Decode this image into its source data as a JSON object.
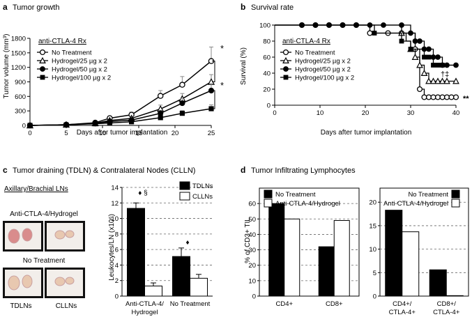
{
  "chart_data": [
    {
      "id": "a",
      "type": "line",
      "letter": "a",
      "title": "Tumor growth",
      "xlabel": "Days after tumor implantation",
      "ylabel": "Tumor volume (mm³)",
      "xlim": [
        0,
        25
      ],
      "ylim": [
        0,
        1800
      ],
      "xticks": [
        0,
        5,
        10,
        15,
        20,
        25
      ],
      "yticks": [
        0,
        300,
        600,
        900,
        1200,
        1500,
        1800
      ],
      "legend_title": "anti-CTLA-4 Rx",
      "series": [
        {
          "name": "No Treatment",
          "marker": "circle-open",
          "x": [
            0,
            5,
            9,
            11,
            14,
            18,
            21,
            25
          ],
          "y": [
            0,
            15,
            55,
            150,
            220,
            610,
            840,
            1330
          ],
          "err": [
            0,
            10,
            25,
            40,
            55,
            110,
            170,
            290
          ]
        },
        {
          "name": "Hydrogel/25 µg x 2",
          "marker": "triangle-open",
          "x": [
            0,
            5,
            9,
            11,
            14,
            18,
            21,
            25
          ],
          "y": [
            0,
            15,
            45,
            100,
            145,
            340,
            550,
            900
          ],
          "err": [
            0,
            10,
            20,
            30,
            40,
            80,
            110,
            150
          ]
        },
        {
          "name": "Hydrogel/50 µg x 2",
          "marker": "circle-filled",
          "x": [
            0,
            5,
            9,
            11,
            14,
            18,
            21,
            25
          ],
          "y": [
            0,
            15,
            40,
            80,
            110,
            250,
            460,
            720
          ],
          "err": [
            0,
            10,
            20,
            25,
            30,
            60,
            90,
            140
          ]
        },
        {
          "name": "Hydrogel/100 µg x 2",
          "marker": "square-filled",
          "x": [
            0,
            5,
            9,
            11,
            14,
            18,
            21,
            25
          ],
          "y": [
            0,
            10,
            35,
            50,
            75,
            160,
            250,
            345
          ],
          "err": [
            0,
            8,
            15,
            20,
            25,
            40,
            55,
            80
          ]
        }
      ],
      "annotations": [
        "*",
        "*"
      ]
    },
    {
      "id": "b",
      "type": "line",
      "letter": "b",
      "title": "Survival rate",
      "xlabel": "Days after tumor implantation",
      "ylabel": "Survival (%)",
      "xlim": [
        0,
        40
      ],
      "ylim": [
        0,
        100
      ],
      "xticks": [
        0,
        10,
        20,
        30,
        40
      ],
      "yticks": [
        0,
        20,
        40,
        60,
        80,
        100
      ],
      "legend_title": "anti-CTLA-4 Rx",
      "series": [
        {
          "name": "No Treatment",
          "marker": "circle-open",
          "steps": [
            [
              0,
              100
            ],
            [
              21,
              90
            ],
            [
              31,
              70
            ],
            [
              32,
              20
            ],
            [
              33,
              10
            ],
            [
              40,
              10
            ]
          ],
          "markers_x": [
            6,
            9,
            12,
            15,
            18,
            21,
            25,
            28,
            31,
            32,
            33,
            34,
            35,
            36,
            37,
            38,
            39,
            40
          ]
        },
        {
          "name": "Hydrogel/25 µg x 2",
          "marker": "triangle-open",
          "steps": [
            [
              0,
              100
            ],
            [
              28,
              90
            ],
            [
              29,
              80
            ],
            [
              30,
              70
            ],
            [
              31,
              60
            ],
            [
              32,
              50
            ],
            [
              33,
              40
            ],
            [
              34,
              30
            ],
            [
              40,
              30
            ]
          ],
          "markers_x": [
            28,
            30,
            31,
            32,
            33,
            34,
            35,
            36,
            37,
            38,
            40
          ]
        },
        {
          "name": "Hydrogel/50 µg x 2",
          "marker": "circle-filled",
          "steps": [
            [
              0,
              100
            ],
            [
              30,
              90
            ],
            [
              31,
              80
            ],
            [
              33,
              70
            ],
            [
              35,
              60
            ],
            [
              37,
              50
            ],
            [
              40,
              50
            ]
          ],
          "markers_x": [
            6,
            9,
            12,
            15,
            18,
            21,
            24,
            28,
            30,
            31,
            32,
            33,
            34,
            35,
            36,
            37,
            38,
            40
          ]
        },
        {
          "name": "Hydrogel/100 µg x 2",
          "marker": "square-filled",
          "steps": [
            [
              0,
              100
            ],
            [
              22,
              90
            ],
            [
              28,
              80
            ],
            [
              30,
              70
            ],
            [
              33,
              60
            ],
            [
              35,
              50
            ],
            [
              40,
              50
            ]
          ],
          "markers_x": [
            22,
            28,
            30,
            33,
            34,
            35,
            36,
            37
          ]
        }
      ],
      "annotations": [
        "†‡",
        "**"
      ]
    },
    {
      "id": "c",
      "type": "bar",
      "letter": "c",
      "title": "Tumor draining (TDLN) & Contralateral Nodes (CLLN)",
      "ylabel": "Leukocytes/LN (x10⁶)",
      "ylim": [
        0,
        14
      ],
      "yticks": [
        0,
        2,
        4,
        6,
        8,
        10,
        12,
        14
      ],
      "categories": [
        "Anti-CTLA-4/ Hydrogel",
        "No Treatment"
      ],
      "series": [
        {
          "name": "TDLNs",
          "fill": "#000000",
          "values": [
            11.3,
            5.1
          ],
          "err": [
            0.7,
            1.1
          ]
        },
        {
          "name": "CLLNs",
          "fill": "#ffffff",
          "values": [
            1.3,
            2.3
          ],
          "err": [
            0.4,
            0.5
          ]
        }
      ],
      "annotations": [
        "♦ §",
        "♦"
      ]
    },
    {
      "id": "d1",
      "type": "bar",
      "letter": "d",
      "title": "Tumor Infiltrating Lymphocytes",
      "ylabel": "% of CD3+ TIL",
      "ylim": [
        0,
        70
      ],
      "yticks": [
        0,
        10,
        20,
        30,
        40,
        50,
        60
      ],
      "categories": [
        "CD4+",
        "CD8+"
      ],
      "series": [
        {
          "name": "No Treatment",
          "fill": "#000000",
          "values": [
            60,
            32
          ]
        },
        {
          "name": "Anti-CTLA-4/Hydrogel",
          "fill": "#ffffff",
          "values": [
            50,
            49
          ]
        }
      ]
    },
    {
      "id": "d2",
      "type": "bar",
      "ylim": [
        0,
        23
      ],
      "yticks": [
        0,
        5,
        10,
        15,
        20
      ],
      "categories": [
        "CD4+/ CTLA-4+",
        "CD8+/ CTLA-4+"
      ],
      "series": [
        {
          "name": "No Treatment",
          "fill": "#000000",
          "values": [
            18.3,
            5.6
          ]
        },
        {
          "name": "Anti-CTLA-4/Hydrogel",
          "fill": "#ffffff",
          "values": [
            13.7,
            0.1
          ]
        }
      ]
    }
  ],
  "photos": {
    "heading": "Axillary/Brachial LNs",
    "row1_label": "Anti-CTLA-4/Hydrogel",
    "row2_label": "No Treatment",
    "col1_label": "TDLNs",
    "col2_label": "CLLNs"
  },
  "colors": {
    "ink": "#000000",
    "grid": "#666666",
    "tissue": "#d98c8c",
    "tissue_pale": "#e8c8b0"
  }
}
